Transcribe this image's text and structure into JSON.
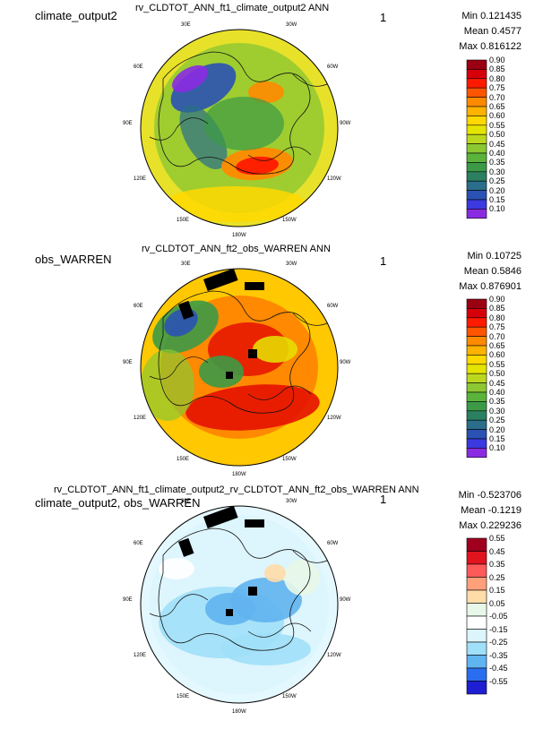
{
  "panels": [
    {
      "case_label": "climate_output2",
      "title": "rv_CLDTOT_ANN_ft1_climate_output2  ANN",
      "panel_number": "1",
      "stats": {
        "min": "Min 0.121435",
        "mean": "Mean 0.4577",
        "max": "Max 0.816122"
      },
      "lon_labels": {
        "l30e": "30E",
        "l30w": "30W",
        "l60e": "60E",
        "l60w": "60W",
        "l90e": "90E",
        "l90w": "90W",
        "l120e": "120E",
        "l120w": "120W",
        "l150e": "150E",
        "l150w": "150W",
        "l180": "180W"
      },
      "colorbar": {
        "ticks": [
          "0.90",
          "0.85",
          "0.80",
          "0.75",
          "0.70",
          "0.65",
          "0.60",
          "0.55",
          "0.50",
          "0.45",
          "0.40",
          "0.35",
          "0.30",
          "0.25",
          "0.20",
          "0.15",
          "0.10"
        ],
        "colors": [
          "#9b0012",
          "#d6000a",
          "#ff1a00",
          "#ff5500",
          "#ff8a00",
          "#ffb300",
          "#ffd800",
          "#e5e400",
          "#bcd81e",
          "#8cc832",
          "#5ab43c",
          "#3c9a46",
          "#2a8060",
          "#2a6e8a",
          "#2a52b4",
          "#3a3ae0",
          "#8a2be2"
        ]
      },
      "map": {
        "ocean": "#e8e12a",
        "hot": [
          "#ff2a00",
          "#ff8a00"
        ],
        "cool": [
          "#2a52b4",
          "#6a2be2",
          "#3c9a46"
        ]
      }
    },
    {
      "case_label": "obs_WARREN",
      "title": "rv_CLDTOT_ANN_ft2_obs_WARREN  ANN",
      "panel_number": "1",
      "stats": {
        "min": "Min 0.10725",
        "mean": "Mean 0.5846",
        "max": "Max 0.876901"
      },
      "lon_labels": {
        "l30e": "30E",
        "l30w": "30W",
        "l60e": "60E",
        "l60w": "60W",
        "l90e": "90E",
        "l90w": "90W",
        "l120e": "120E",
        "l120w": "120W",
        "l150e": "150E",
        "l150w": "150W",
        "l180": "180W"
      },
      "colorbar": {
        "ticks": [
          "0.90",
          "0.85",
          "0.80",
          "0.75",
          "0.70",
          "0.65",
          "0.60",
          "0.55",
          "0.50",
          "0.45",
          "0.40",
          "0.35",
          "0.30",
          "0.25",
          "0.20",
          "0.15",
          "0.10"
        ],
        "colors": [
          "#9b0012",
          "#d6000a",
          "#ff1a00",
          "#ff5500",
          "#ff8a00",
          "#ffb300",
          "#ffd800",
          "#e5e400",
          "#bcd81e",
          "#8cc832",
          "#5ab43c",
          "#3c9a46",
          "#2a8060",
          "#2a6e8a",
          "#2a52b4",
          "#3a3ae0",
          "#8a2be2"
        ]
      },
      "map": {
        "ocean": "#ffc800",
        "hot": [
          "#e51200",
          "#ff5500"
        ],
        "cool": [
          "#3c9a46",
          "#2a52b4",
          "#8cc832"
        ]
      }
    },
    {
      "case_label": "climate_output2, obs_WARREN",
      "title": "rv_CLDTOT_ANN_ft1_climate_output2_rv_CLDTOT_ANN_ft2_obs_WARREN  ANN",
      "panel_number": "1",
      "stats": {
        "min": "Min -0.523706",
        "mean": "Mean -0.1219",
        "max": "Max 0.229236"
      },
      "lon_labels": {
        "l30e": "30E",
        "l30w": "30W",
        "l60e": "60E",
        "l60w": "60W",
        "l90e": "90E",
        "l90w": "90W",
        "l120e": "120E",
        "l120w": "120W",
        "l150e": "150E",
        "l150w": "150W",
        "l180": "180W"
      },
      "colorbar": {
        "ticks": [
          "0.55",
          "0.45",
          "0.35",
          "0.25",
          "0.15",
          "0.05",
          "-0.05",
          "-0.15",
          "-0.25",
          "-0.35",
          "-0.45",
          "-0.55"
        ],
        "colors": [
          "#a0001e",
          "#e0141e",
          "#ff5a5a",
          "#ffa07a",
          "#ffdca8",
          "#e8f8e8",
          "#ffffff",
          "#dcf4fc",
          "#a0e0f8",
          "#60b4f0",
          "#2a6ef0",
          "#1e1ed2"
        ]
      },
      "map": {
        "ocean": "#e4f8ff",
        "hot": [
          "#ffe0c0",
          "#ffffff"
        ],
        "cool": [
          "#60b4f0",
          "#a0e0f8",
          "#2a6ef0"
        ]
      }
    }
  ]
}
